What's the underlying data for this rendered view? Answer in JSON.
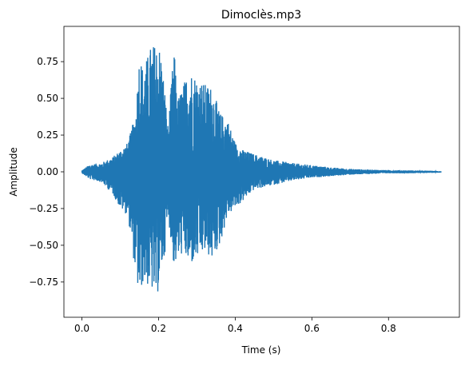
{
  "chart_data": {
    "type": "line",
    "title": "Dimoclès.mp3",
    "xlabel": "Time (s)",
    "ylabel": "Amplitude",
    "xlim": [
      -0.047,
      0.985
    ],
    "ylim": [
      -0.99,
      0.99
    ],
    "xticks": [
      0.0,
      0.2,
      0.4,
      0.6,
      0.8
    ],
    "xtick_labels": [
      "0.0",
      "0.2",
      "0.4",
      "0.6",
      "0.8"
    ],
    "yticks": [
      -0.75,
      -0.5,
      -0.25,
      0.0,
      0.25,
      0.5,
      0.75
    ],
    "ytick_labels": [
      "−0.75",
      "−0.50",
      "−0.25",
      "0.00",
      "0.25",
      "0.50",
      "0.75"
    ],
    "grid": false,
    "series": [
      {
        "color": "#1f77b4",
        "duration_s": 0.937,
        "envelope": {
          "t": [
            0.0,
            0.02,
            0.05,
            0.08,
            0.1,
            0.12,
            0.14,
            0.15,
            0.16,
            0.18,
            0.195,
            0.205,
            0.215,
            0.225,
            0.24,
            0.25,
            0.265,
            0.28,
            0.3,
            0.32,
            0.34,
            0.36,
            0.38,
            0.4,
            0.42,
            0.45,
            0.5,
            0.55,
            0.6,
            0.65,
            0.7,
            0.75,
            0.8,
            0.85,
            0.9,
            0.937
          ],
          "max": [
            0.01,
            0.05,
            0.06,
            0.1,
            0.15,
            0.2,
            0.4,
            0.82,
            0.7,
            0.86,
            0.88,
            0.85,
            0.6,
            0.3,
            0.85,
            0.5,
            0.6,
            0.7,
            0.65,
            0.6,
            0.58,
            0.4,
            0.36,
            0.2,
            0.15,
            0.12,
            0.08,
            0.06,
            0.045,
            0.03,
            0.02,
            0.015,
            0.012,
            0.01,
            0.008,
            0.005
          ],
          "min": [
            -0.01,
            -0.05,
            -0.07,
            -0.15,
            -0.25,
            -0.3,
            -0.7,
            -0.87,
            -0.75,
            -0.8,
            -0.88,
            -0.7,
            -0.6,
            -0.3,
            -0.65,
            -0.6,
            -0.55,
            -0.65,
            -0.6,
            -0.55,
            -0.6,
            -0.5,
            -0.3,
            -0.25,
            -0.2,
            -0.12,
            -0.09,
            -0.06,
            -0.04,
            -0.03,
            -0.02,
            -0.015,
            -0.01,
            -0.01,
            -0.008,
            -0.005
          ]
        }
      }
    ]
  }
}
